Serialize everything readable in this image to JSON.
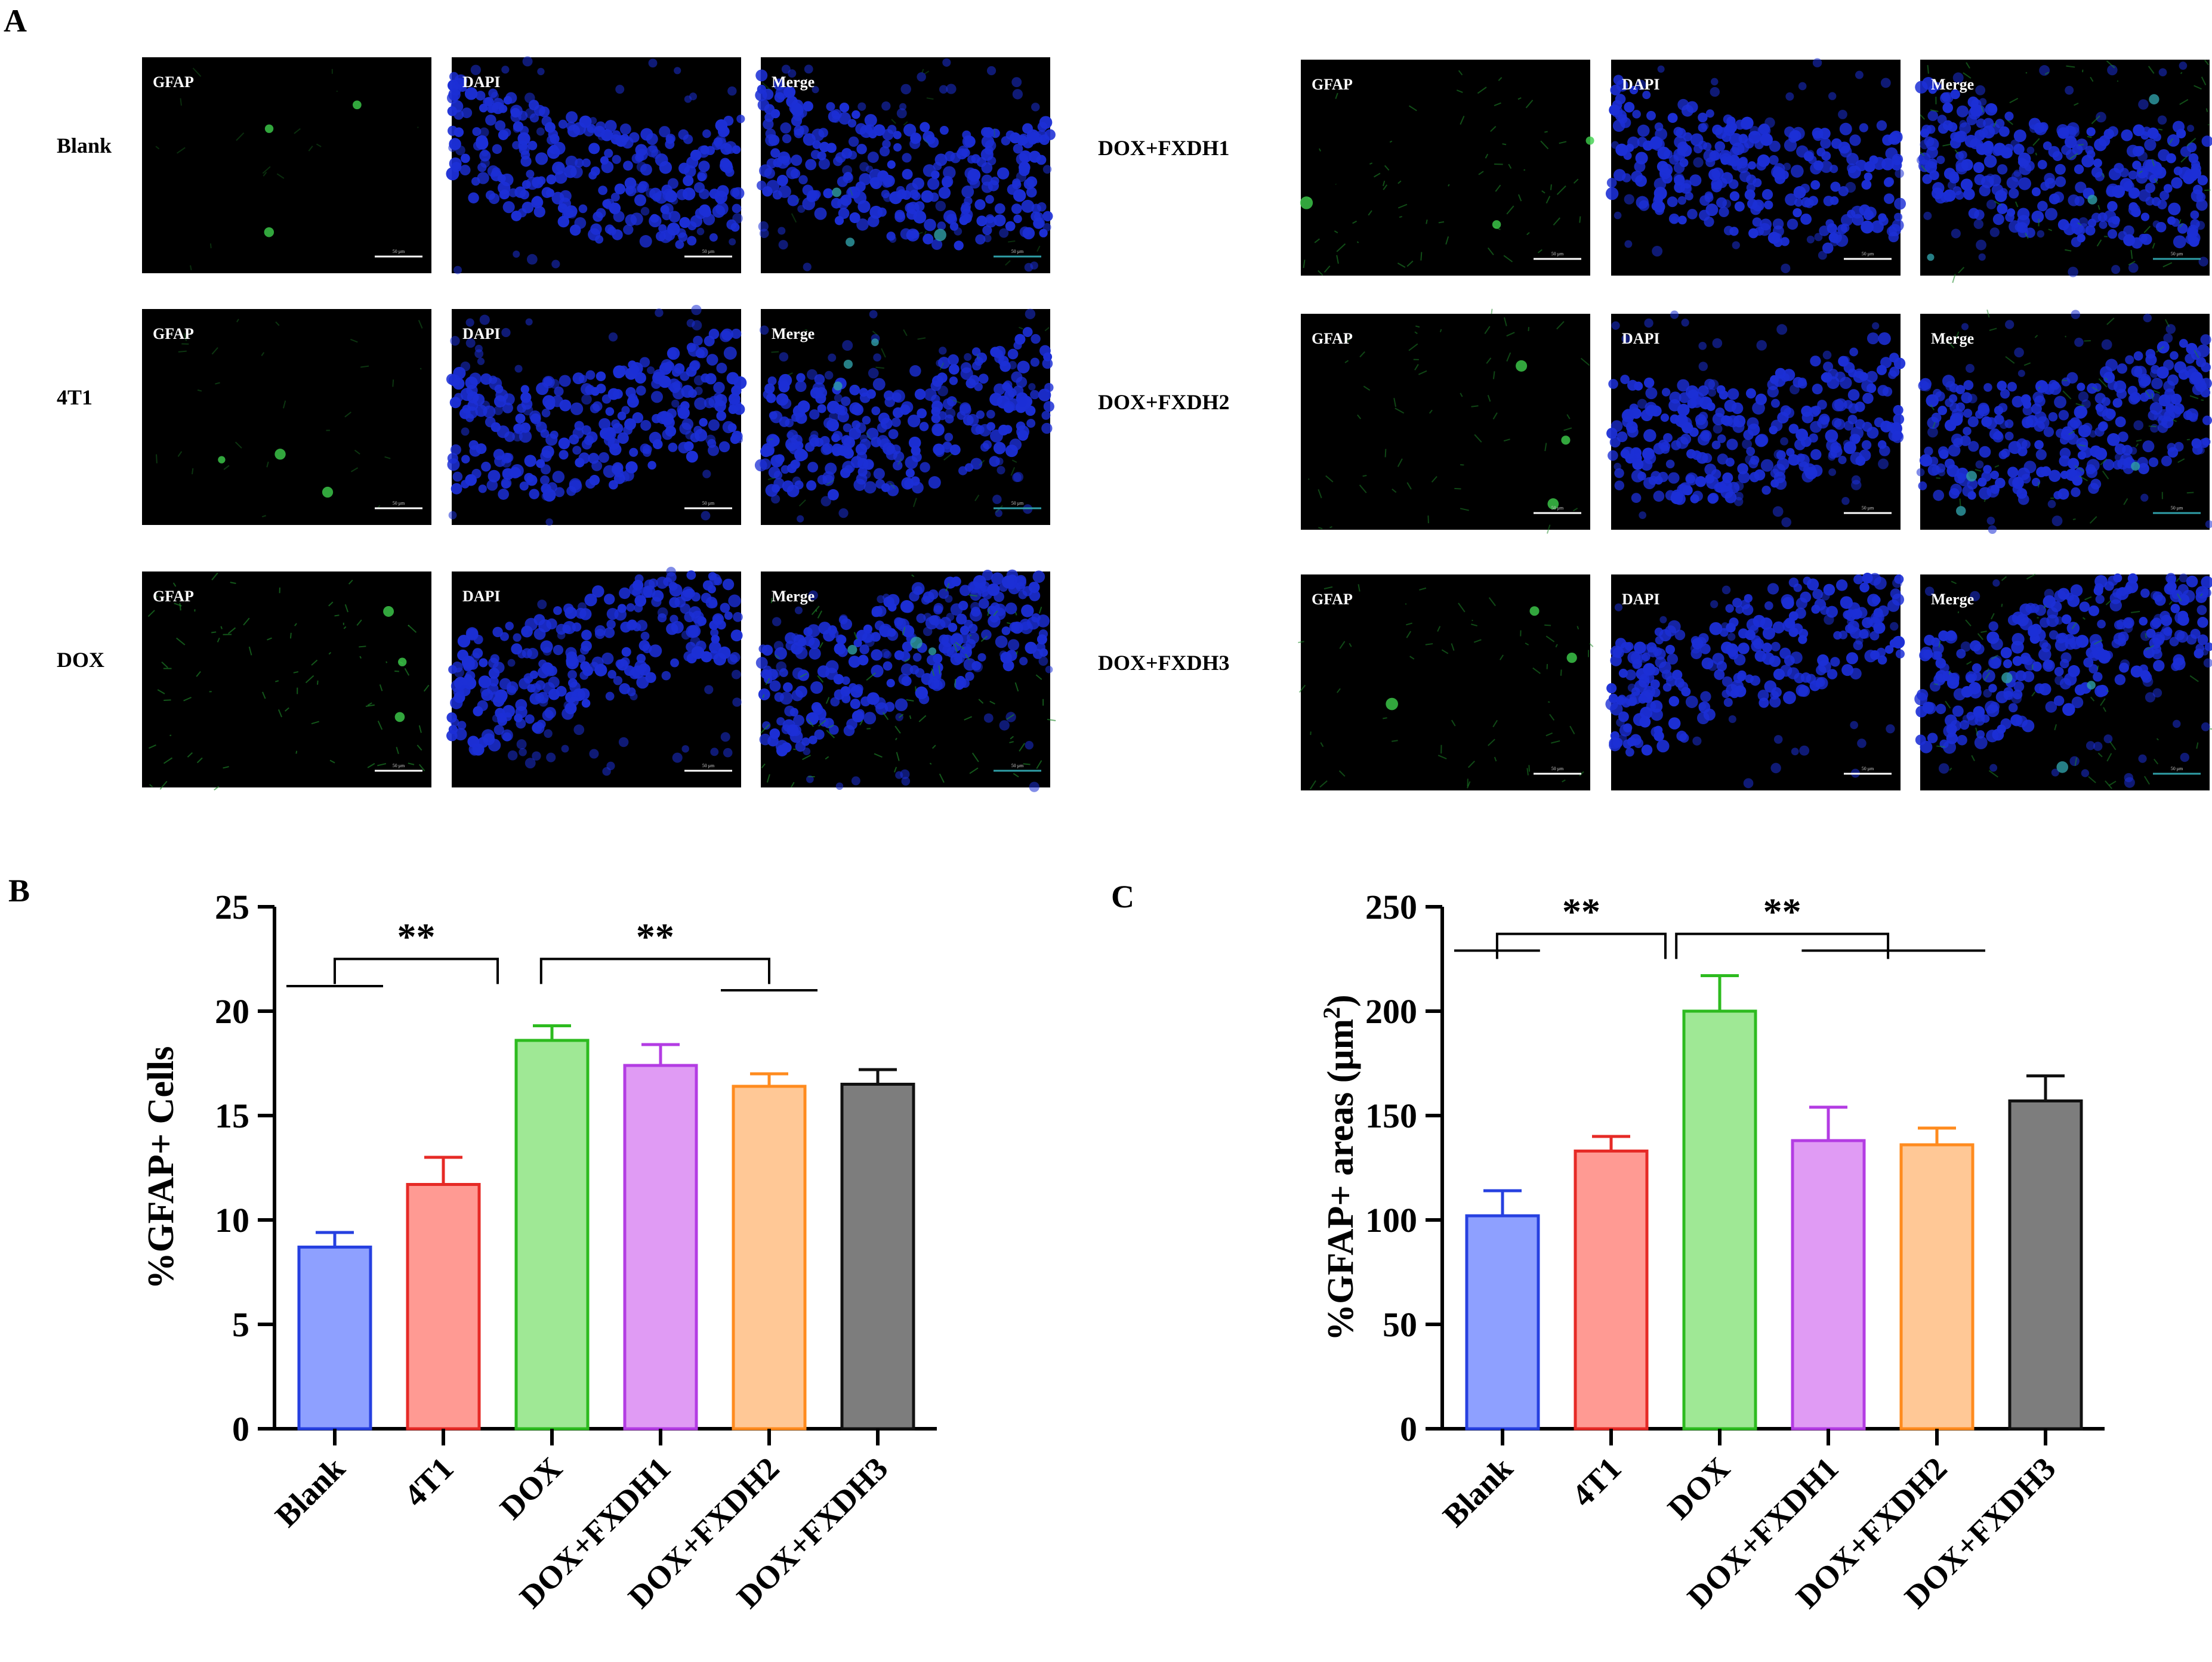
{
  "panel_labels": {
    "a": "A",
    "b": "B",
    "c": "C"
  },
  "micrographs": {
    "columns": [
      "GFAP",
      "DAPI",
      "Merge"
    ],
    "scale_bar_label": "50 μm",
    "left_groups": [
      "Blank",
      "4T1",
      "DOX"
    ],
    "right_groups": [
      "DOX+FXDH1",
      "DOX+FXDH2",
      "DOX+FXDH3"
    ],
    "colors": {
      "background": "#000000",
      "gfap": "#1f8a2a",
      "dapi": "#1c2fd6",
      "merge_teal": "#2f9fa8"
    },
    "green_intensity_note_values": {
      "Blank": 0.05,
      "4T1": 0.15,
      "DOX": 0.55,
      "DOX+FXDH1": 0.45,
      "DOX+FXDH2": 0.35,
      "DOX+FXDH3": 0.4
    }
  },
  "chart_data": [
    {
      "type": "bar",
      "panel": "B",
      "categories": [
        "Blank",
        "4T1",
        "DOX",
        "DOX+FXDH1",
        "DOX+FXDH2",
        "DOX+FXDH3"
      ],
      "values": [
        8.7,
        11.7,
        18.6,
        17.4,
        16.4,
        16.5
      ],
      "errors": [
        0.7,
        1.3,
        0.7,
        1.0,
        0.6,
        0.7
      ],
      "ylabel": "%GFAP+ Cells",
      "xlabel": "",
      "ylim": [
        0,
        25
      ],
      "yticks": [
        0,
        5,
        10,
        15,
        20,
        25
      ],
      "fill_colors": [
        "#8ea0ff",
        "#ff9a93",
        "#9fe895",
        "#e09bf4",
        "#ffc896",
        "#7d7d7d"
      ],
      "edge_colors": [
        "#2640e0",
        "#e62a26",
        "#2dbb1f",
        "#b33ce3",
        "#ff8b1e",
        "#111111"
      ],
      "significance": [
        {
          "label": "**",
          "y": 22.5,
          "from": 0.5,
          "to": 2,
          "lower_line": [
            0,
            1,
            21.2
          ]
        },
        {
          "label": "**",
          "y": 22.5,
          "from": 2.4,
          "to": 4.5,
          "lower_line": [
            4,
            5,
            21.0
          ]
        }
      ]
    },
    {
      "type": "bar",
      "panel": "C",
      "categories": [
        "Blank",
        "4T1",
        "DOX",
        "DOX+FXDH1",
        "DOX+FXDH2",
        "DOX+FXDH3"
      ],
      "values": [
        102,
        133,
        200,
        138,
        136,
        157
      ],
      "errors": [
        12,
        7,
        17,
        16,
        8,
        12
      ],
      "ylabel": "%GFAP+ areas (μm",
      "ylabel_sup": "2",
      "ylabel_end": ")",
      "xlabel": "",
      "ylim": [
        0,
        250
      ],
      "yticks": [
        0,
        50,
        100,
        150,
        200,
        250
      ],
      "fill_colors": [
        "#8ea0ff",
        "#ff9a93",
        "#9fe895",
        "#e09bf4",
        "#ffc896",
        "#7d7d7d"
      ],
      "edge_colors": [
        "#2640e0",
        "#e62a26",
        "#2dbb1f",
        "#b33ce3",
        "#ff8b1e",
        "#111111"
      ],
      "significance": [
        {
          "label": "**",
          "y": 237,
          "from": 0.45,
          "to": 2,
          "lower_line": [
            0,
            0.9,
            229
          ]
        },
        {
          "label": "**",
          "y": 237,
          "from": 2.1,
          "to": 4.05,
          "lower_line": [
            3.2,
            5,
            229
          ]
        }
      ]
    }
  ]
}
